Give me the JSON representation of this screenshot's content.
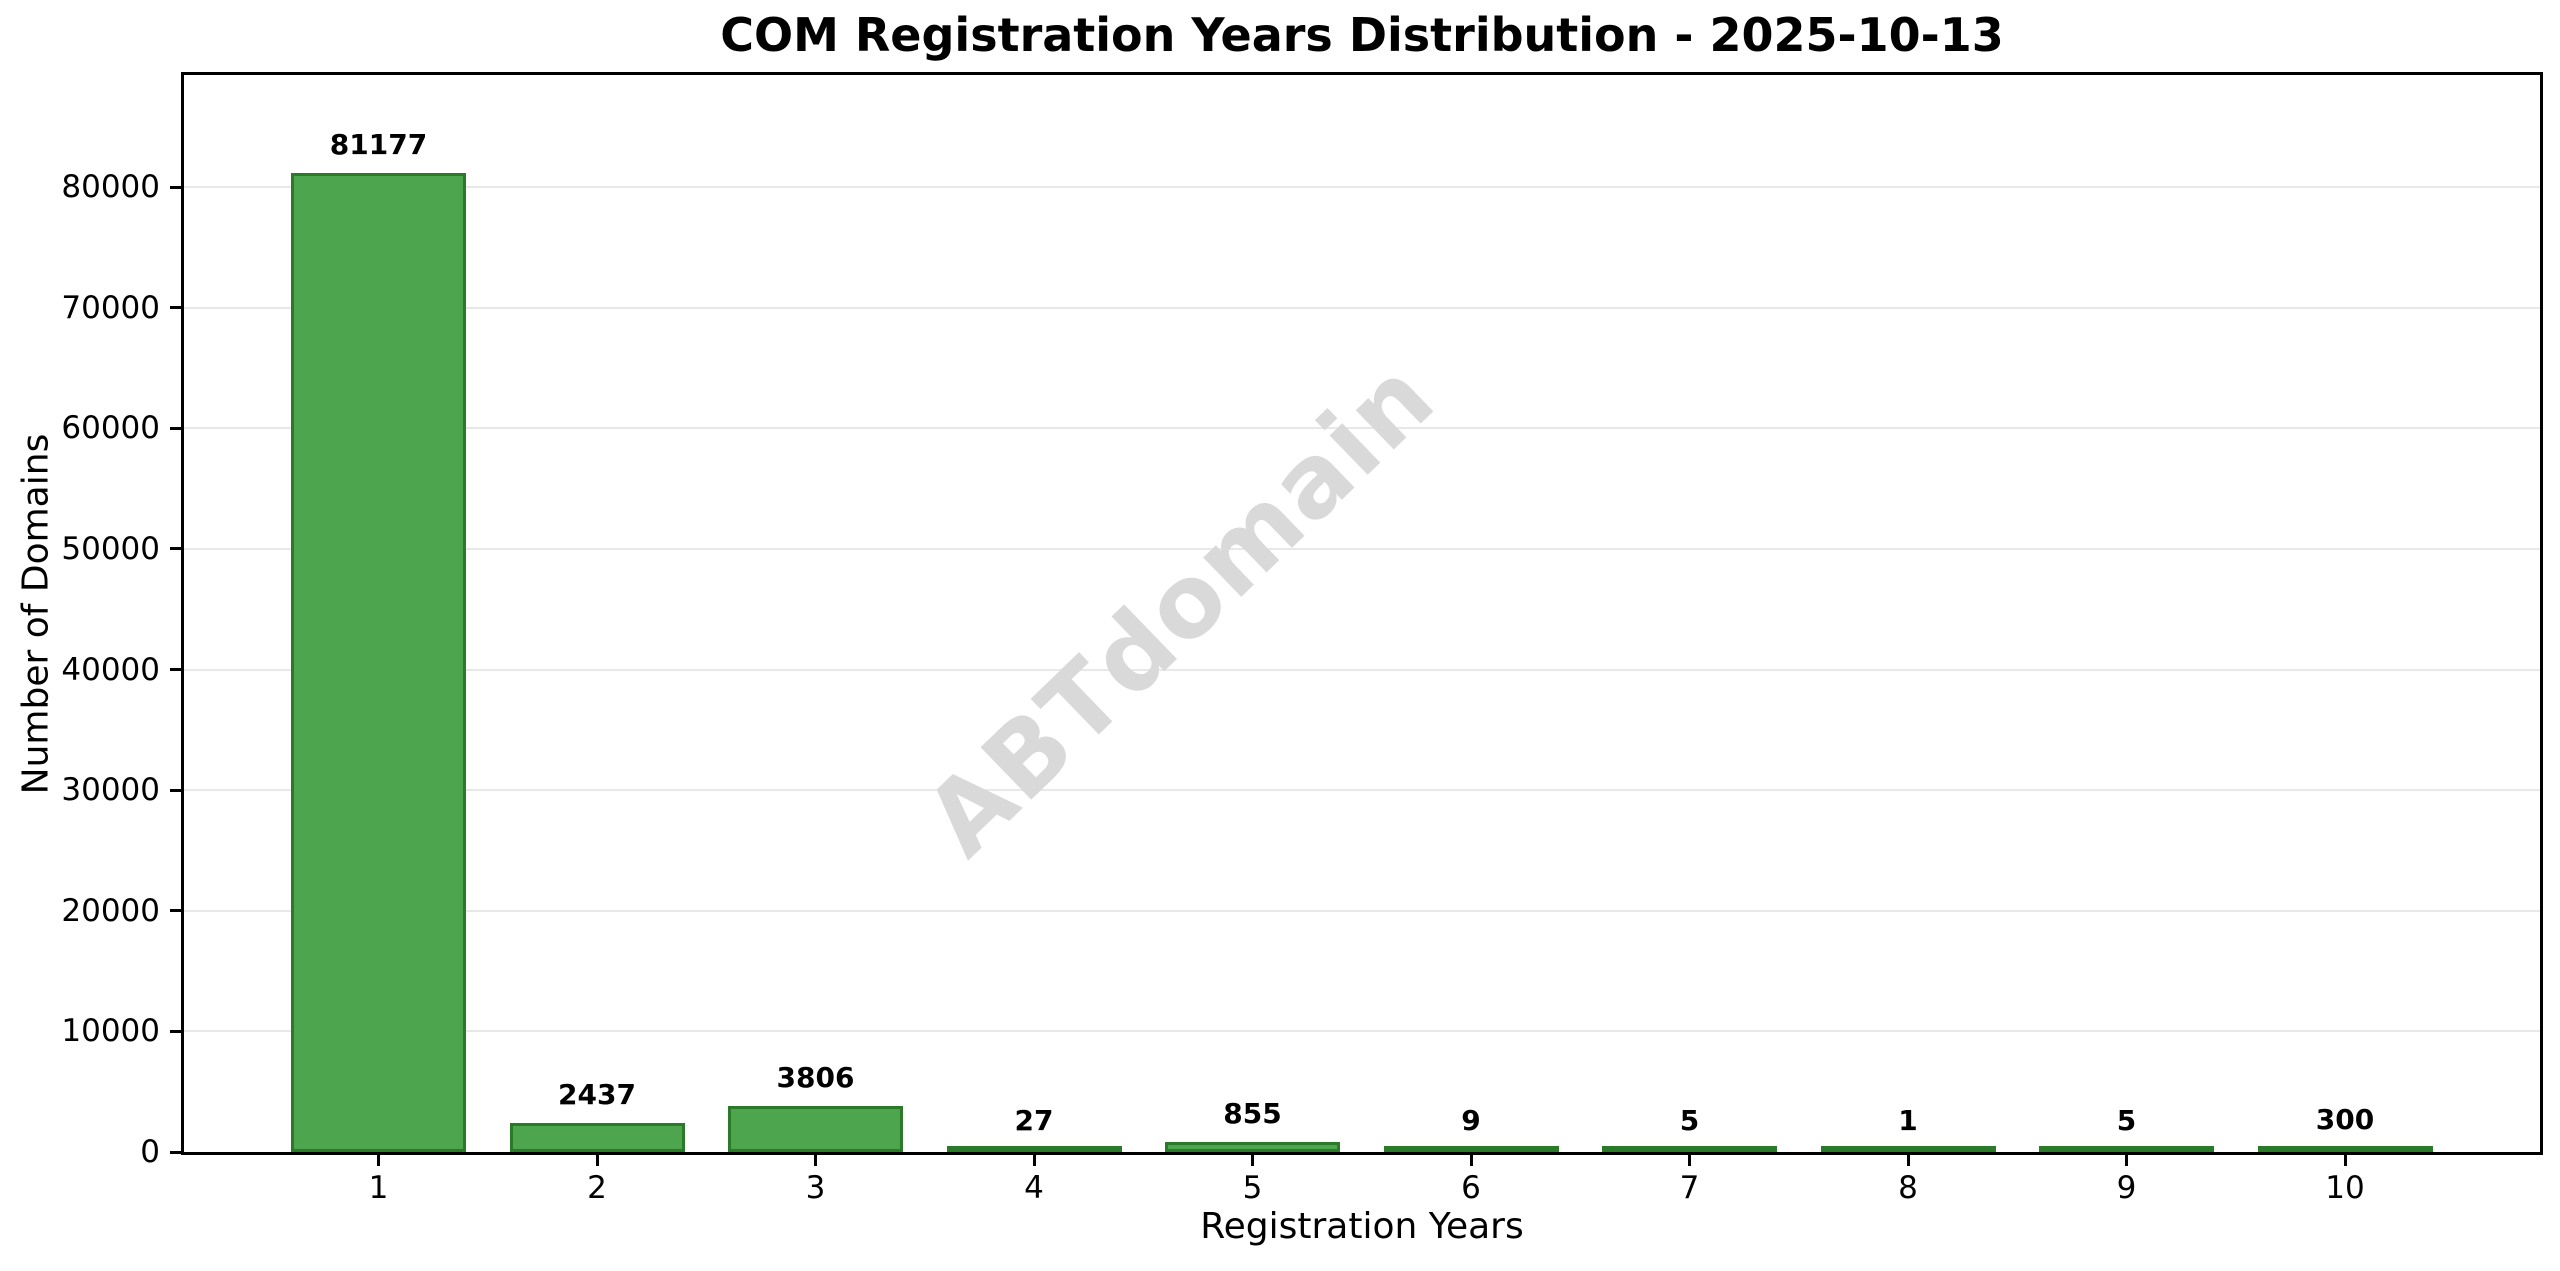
{
  "chart_data": {
    "type": "bar",
    "title": "COM Registration Years Distribution - 2025-10-13",
    "xlabel": "Registration Years",
    "ylabel": "Number of Domains",
    "categories": [
      "1",
      "2",
      "3",
      "4",
      "5",
      "6",
      "7",
      "8",
      "9",
      "10"
    ],
    "values": [
      81177,
      2437,
      3806,
      27,
      855,
      9,
      5,
      1,
      5,
      300
    ],
    "value_labels": [
      "81177",
      "2437",
      "3806",
      "27",
      "855",
      "9",
      "5",
      "1",
      "5",
      "300"
    ],
    "yticks": [
      0,
      10000,
      20000,
      30000,
      40000,
      50000,
      60000,
      70000,
      80000
    ],
    "ytick_labels": [
      "0",
      "10000",
      "20000",
      "30000",
      "40000",
      "50000",
      "60000",
      "70000",
      "80000"
    ],
    "ylim": [
      0,
      89300
    ],
    "grid": "horizontal",
    "legend": "none",
    "colors": {
      "bar_fill": "#4da64d",
      "bar_edge": "#2a7a2a",
      "gridline": "#e8e8e8",
      "axis": "#000000",
      "text": "#000000",
      "watermark": "#d9d9d9"
    }
  },
  "watermark": {
    "text": "ABTdomain"
  }
}
